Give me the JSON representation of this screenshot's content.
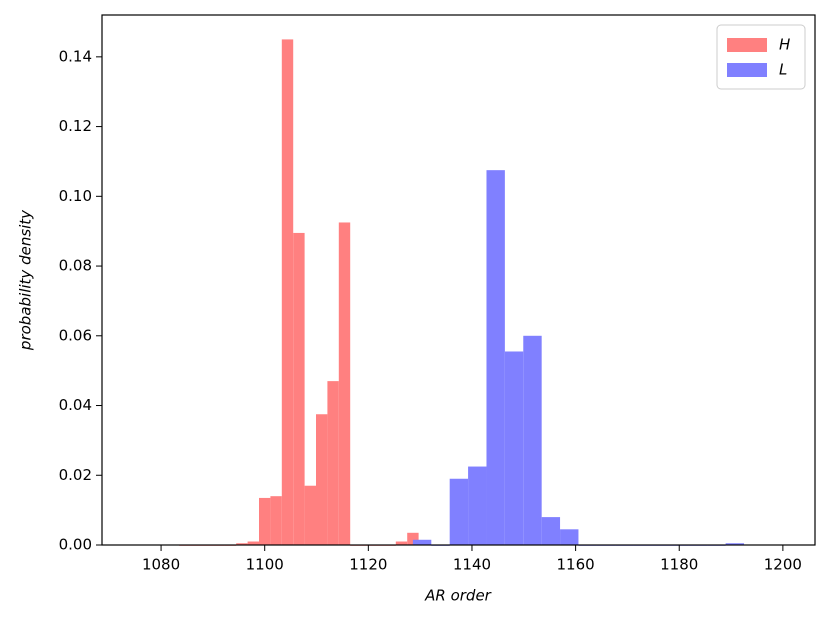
{
  "chart_data": {
    "type": "histogram",
    "x_label": "AR order",
    "y_label": "probability density",
    "xlim": [
      1068.6,
      1206.2
    ],
    "ylim": [
      0,
      0.152
    ],
    "xticks": [
      1080,
      1100,
      1120,
      1140,
      1160,
      1180,
      1200
    ],
    "yticks": [
      {
        "value": 0,
        "label": "0.00"
      },
      {
        "value": 0.02,
        "label": "0.02"
      },
      {
        "value": 0.04,
        "label": "0.04"
      },
      {
        "value": 0.06,
        "label": "0.06"
      },
      {
        "value": 0.08,
        "label": "0.08"
      },
      {
        "value": 0.1,
        "label": "0.10"
      },
      {
        "value": 0.12,
        "label": "0.12"
      },
      {
        "value": 0.14,
        "label": "0.14"
      }
    ],
    "legend": "upper right",
    "series": [
      {
        "name": "H",
        "color": "#ff8080",
        "bins": [
          1083.5,
          1085.7,
          1087.9,
          1090.1,
          1092.3,
          1094.5,
          1096.7,
          1098.9,
          1101.1,
          1103.3,
          1105.5,
          1107.7,
          1109.9,
          1112.1,
          1114.3,
          1116.5,
          1118.7,
          1120.9,
          1123.1,
          1125.3,
          1127.5,
          1129.7
        ],
        "values": [
          0,
          0,
          0,
          0,
          0,
          0.0005,
          0.001,
          0.0135,
          0.014,
          0.145,
          0.0895,
          0.017,
          0.0375,
          0.047,
          0.0925,
          0,
          0,
          0,
          0,
          0.001,
          0.0035
        ]
      },
      {
        "name": "L",
        "color": "#8080ff",
        "bins": [
          1128.6,
          1132.15,
          1135.7,
          1139.25,
          1142.8,
          1146.35,
          1149.9,
          1153.45,
          1157.0,
          1160.55,
          1164.1,
          1167.65,
          1171.2,
          1174.75,
          1178.3,
          1181.85,
          1185.4,
          1188.95,
          1192.5
        ],
        "values": [
          0.0015,
          0,
          0.019,
          0.0225,
          0.1075,
          0.0555,
          0.06,
          0.008,
          0.0045,
          0,
          0,
          0,
          0,
          0,
          0,
          0,
          0,
          0.0005
        ]
      }
    ]
  }
}
